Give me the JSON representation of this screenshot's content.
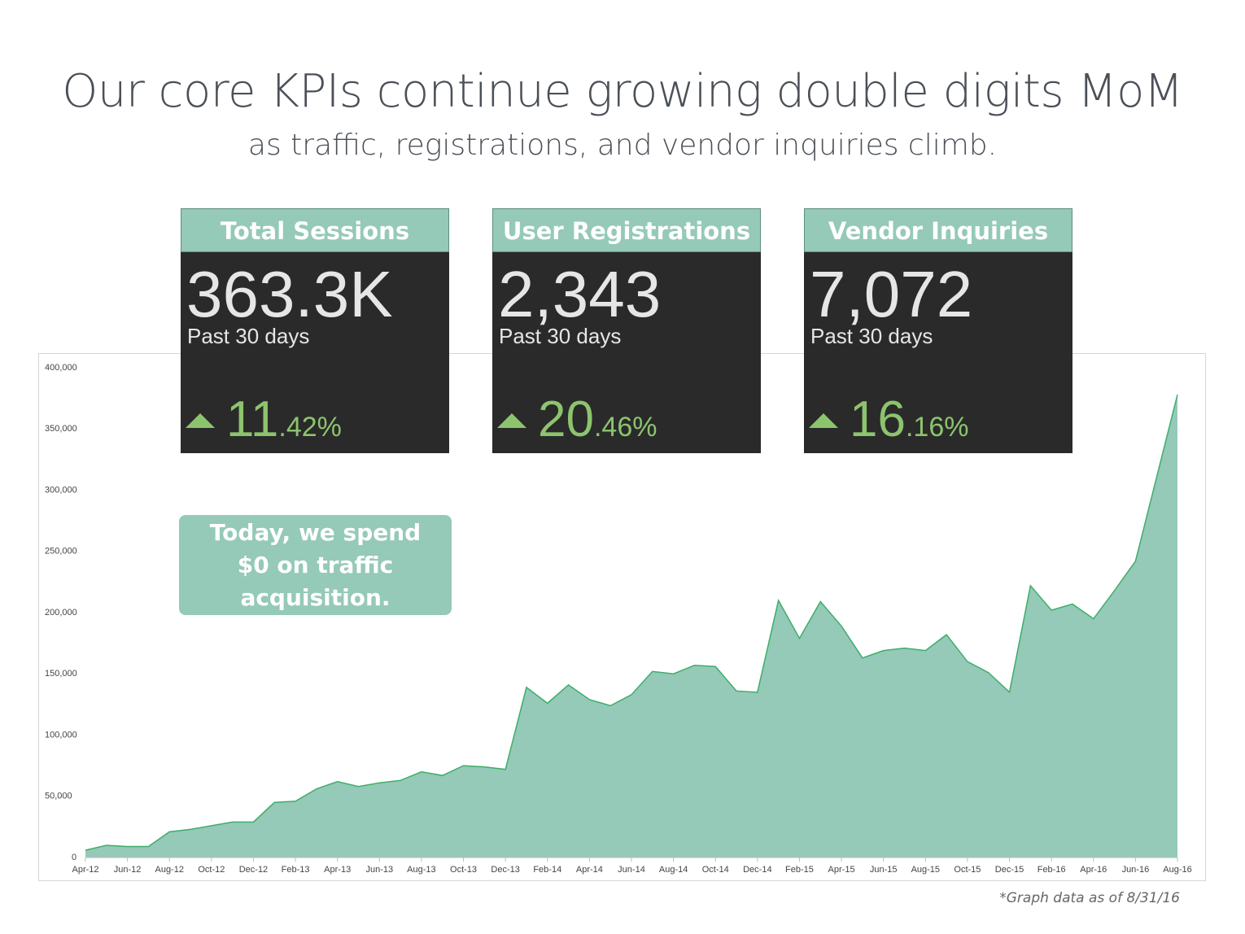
{
  "header": {
    "title": "Our core KPIs continue growing double digits MoM",
    "subtitle": "as traffic, registrations, and vendor inquiries climb."
  },
  "kpis": [
    {
      "label": "Total Sessions",
      "value": "363.3K",
      "period": "Past 30 days",
      "change_whole": "11",
      "change_frac": ".42%"
    },
    {
      "label": "User Registrations",
      "value": "2,343",
      "period": "Past 30 days",
      "change_whole": "20",
      "change_frac": ".46%"
    },
    {
      "label": "Vendor Inquiries",
      "value": "7,072",
      "period": "Past 30 days",
      "change_whole": "16",
      "change_frac": ".16%"
    }
  ],
  "callout": "Today, we spend $0 on traffic acquisition.",
  "footnote": "*Graph data as of 8/31/16",
  "chart_data": {
    "type": "area",
    "categories": [
      "Apr-12",
      null,
      "Jun-12",
      null,
      "Aug-12",
      null,
      "Oct-12",
      null,
      "Dec-12",
      null,
      "Feb-13",
      null,
      "Apr-13",
      null,
      "Jun-13",
      null,
      "Aug-13",
      null,
      "Oct-13",
      null,
      "Dec-13",
      null,
      "Feb-14",
      null,
      "Apr-14",
      null,
      "Jun-14",
      null,
      "Aug-14",
      null,
      "Oct-14",
      null,
      "Dec-14",
      null,
      "Feb-15",
      null,
      "Apr-15",
      null,
      "Jun-15",
      null,
      "Aug-15",
      null,
      "Oct-15",
      null,
      "Dec-15",
      null,
      "Feb-16",
      null,
      "Apr-16",
      null,
      "Jun-16",
      null,
      "Aug-16"
    ],
    "values": [
      6000,
      10000,
      9000,
      9000,
      21000,
      23000,
      26000,
      29000,
      29000,
      45000,
      46000,
      56000,
      62000,
      58000,
      61000,
      63000,
      70000,
      67000,
      75000,
      74000,
      72000,
      139000,
      126000,
      141000,
      129000,
      124000,
      133000,
      152000,
      150000,
      157000,
      156000,
      136000,
      135000,
      210000,
      179000,
      209000,
      189000,
      163000,
      169000,
      171000,
      169000,
      182000,
      160000,
      151000,
      135000,
      222000,
      202000,
      207000,
      195000,
      218000,
      242000,
      310000,
      378000
    ],
    "color": "#95c9b8",
    "line_color": "#3dae6a",
    "ylim": [
      0,
      400000
    ],
    "yticks": [
      0,
      {
        "value": 50000,
        "label": "50,000"
      },
      {
        "value": 100000,
        "label": "100,000"
      },
      {
        "value": 150000,
        "label": "150,000"
      },
      {
        "value": 200000,
        "label": "200,000"
      },
      {
        "value": 250000,
        "label": "250,000"
      },
      {
        "value": 300000,
        "label": "300,000"
      },
      {
        "value": 350000,
        "label": "350,000"
      },
      {
        "value": 400000,
        "label": "400,000"
      }
    ],
    "grid": false
  }
}
